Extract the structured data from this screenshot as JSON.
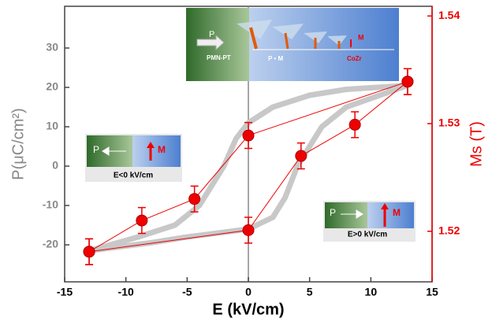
{
  "chart_data": {
    "type": "line",
    "xlabel": "E (kV/cm)",
    "ylabel": "P(μC/cm²)",
    "y2label": "Ms (T)",
    "xlim": [
      -15,
      15
    ],
    "xticks": [
      -15,
      -10,
      -5,
      0,
      5,
      10,
      15
    ],
    "ylim": [
      -29.4,
      40.6
    ],
    "yticks": [
      -20,
      -10,
      0,
      10,
      20,
      30
    ],
    "y2lim": [
      1.5153,
      1.5409
    ],
    "y2ticks": [
      1.52,
      1.53,
      1.54
    ],
    "y_color": "#888888",
    "y2_color": "#ee0000",
    "series": [
      {
        "style": "line",
        "color": "#c8c8c8",
        "x": [
          13,
          8,
          5,
          2,
          0,
          -1,
          -2,
          -3,
          -4,
          -6,
          -9,
          -13
        ],
        "values": [
          20.5,
          19.5,
          18,
          15,
          11,
          7,
          0,
          -5,
          -10,
          -15,
          -18,
          -21.5
        ]
      },
      {
        "style": "line",
        "color": "#c8c8c8",
        "x": [
          -13,
          -8,
          -5,
          0,
          2,
          3,
          4,
          5,
          6,
          8,
          13
        ],
        "values": [
          -21.5,
          -19.5,
          -18,
          -16,
          -13,
          -8,
          0,
          5,
          10,
          15,
          20.5
        ]
      },
      {
        "style": "errorbar",
        "axis": "y2",
        "color": "#ee0000",
        "x": [
          -13,
          -8.7,
          -4.4,
          0,
          13
        ],
        "values": [
          1.5181,
          1.521,
          1.523,
          1.5289,
          1.5339
        ],
        "errors": [
          0.0012,
          0.0012,
          0.0012,
          0.0012,
          0.0012
        ]
      },
      {
        "style": "errorbar",
        "axis": "y2",
        "color": "#ee0000",
        "x": [
          -13,
          0,
          4.3,
          8.7,
          13
        ],
        "values": [
          1.5181,
          1.5201,
          1.527,
          1.5299,
          1.5339
        ],
        "errors": [
          0.0012,
          0.0012,
          0.0012,
          0.0012,
          0.0012
        ]
      }
    ],
    "annotations": {
      "top_p": "P",
      "top_m": "M",
      "substrate": "PMN-PT",
      "coupling": "P • M",
      "film": "CoZr",
      "left_p": "P",
      "left_m": "M",
      "left_caption": "E<0 kV/cm",
      "right_p": "P",
      "right_m": "M",
      "right_caption": "E>0 kV/cm"
    }
  }
}
